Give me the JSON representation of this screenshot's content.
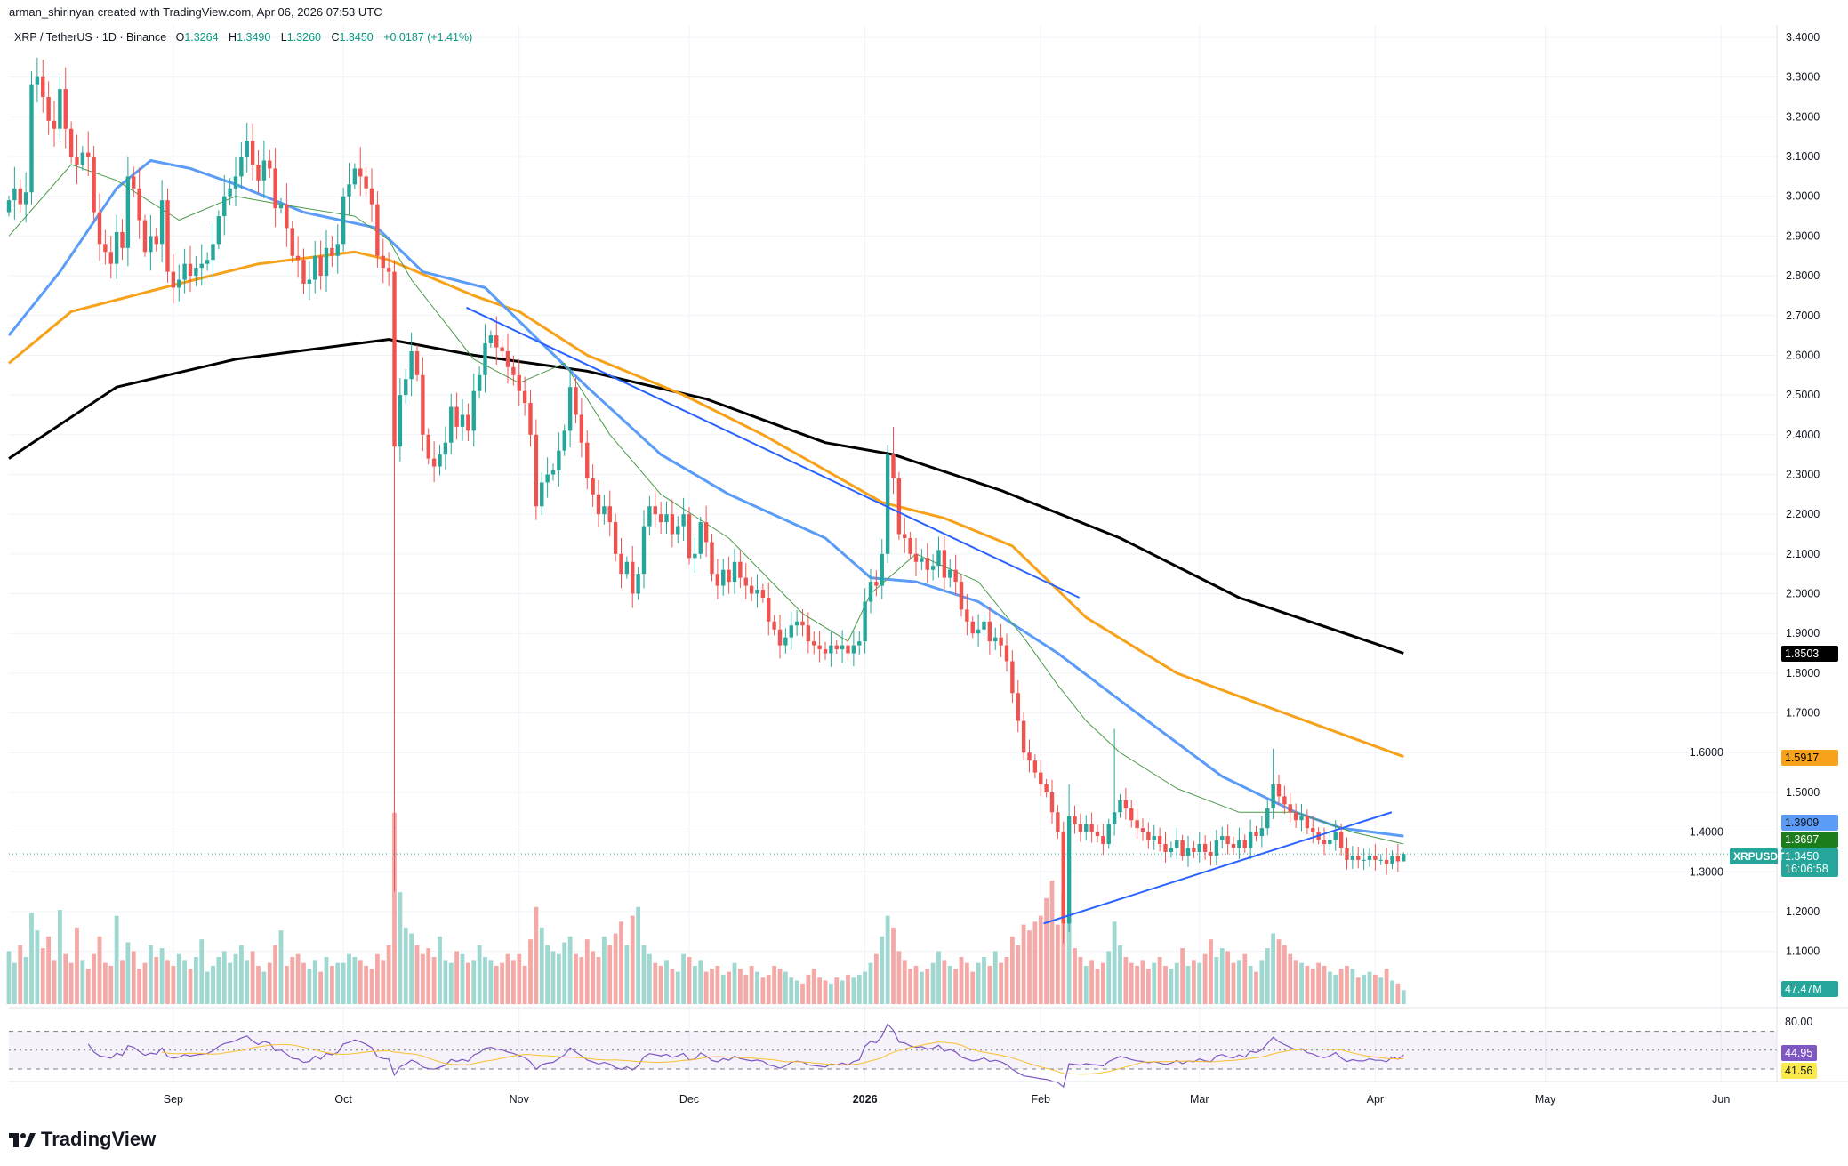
{
  "credit": "arman_shirinyan created with TradingView.com, Apr 06, 2026 07:53 UTC",
  "legend": {
    "symbol": "XRP / TetherUS · 1D · Binance",
    "o_label": "O",
    "o": "1.3264",
    "h_label": "H",
    "h": "1.3490",
    "l_label": "L",
    "l": "1.3260",
    "c_label": "C",
    "c": "1.3450",
    "change": "+0.0187 (+1.41%)"
  },
  "price_labels": {
    "ma200": "1.8503",
    "ma100": "1.5917",
    "ma50": "1.3909",
    "ma20": "1.3697",
    "last": "1.3450",
    "countdown": "16:06:58",
    "ticker": "XRPUSDT",
    "volume": "47.47M",
    "rsi": "44.95",
    "rsi_ma": "41.56",
    "rsi_top": "80.00"
  },
  "logo": "TradingView",
  "colors": {
    "up": "#26a69a",
    "down": "#ef5350",
    "ma200": "#000000",
    "ma100": "#f7a21b",
    "ma50": "#5b9cf6",
    "ma20": "#4a9a4a",
    "trend": "#2962ff",
    "rsi": "#7e57c2",
    "rsi_ma": "#fbc02d"
  },
  "chart_data": {
    "type": "candlestick",
    "title": "XRP / TetherUS · 1D · Binance",
    "start_date": "2025-08-03",
    "ylim": [
      1.05,
      3.42
    ],
    "y_ticks": [
      "3.4000",
      "3.3000",
      "3.2000",
      "3.1000",
      "3.0000",
      "2.9000",
      "2.8000",
      "2.7000",
      "2.6000",
      "2.5000",
      "2.4000",
      "2.3000",
      "2.2000",
      "2.1000",
      "2.0000",
      "1.9000",
      "1.8000",
      "1.7000",
      "1.6000",
      "1.5000",
      "1.4000",
      "1.3000",
      "1.2000",
      "1.1000"
    ],
    "x_ticks": [
      {
        "label": "Sep",
        "index": 29
      },
      {
        "label": "Oct",
        "index": 59
      },
      {
        "label": "Nov",
        "index": 90
      },
      {
        "label": "Dec",
        "index": 120
      },
      {
        "label": "2026",
        "index": 151
      },
      {
        "label": "Feb",
        "index": 182
      },
      {
        "label": "Mar",
        "index": 210
      },
      {
        "label": "Apr",
        "index": 241
      },
      {
        "label": "May",
        "index": 271
      },
      {
        "label": "Jun",
        "index": 302
      }
    ],
    "close": [
      2.99,
      3.02,
      2.98,
      3.01,
      3.28,
      3.3,
      3.25,
      3.19,
      3.17,
      3.27,
      3.17,
      3.1,
      3.08,
      3.11,
      3.1,
      2.96,
      2.88,
      2.86,
      2.83,
      2.91,
      2.87,
      3.05,
      3.02,
      2.94,
      2.86,
      2.9,
      2.88,
      2.99,
      2.81,
      2.77,
      2.79,
      2.83,
      2.8,
      2.82,
      2.83,
      2.84,
      2.88,
      2.95,
      3.0,
      3.02,
      3.05,
      3.1,
      3.14,
      3.08,
      3.04,
      3.09,
      3.07,
      2.97,
      2.98,
      2.92,
      2.85,
      2.84,
      2.78,
      2.79,
      2.85,
      2.8,
      2.87,
      2.85,
      2.88,
      3.0,
      3.03,
      3.07,
      3.05,
      3.02,
      2.98,
      2.85,
      2.82,
      2.81,
      2.37,
      2.5,
      2.54,
      2.61,
      2.55,
      2.4,
      2.34,
      2.32,
      2.35,
      2.38,
      2.47,
      2.42,
      2.45,
      2.41,
      2.51,
      2.55,
      2.63,
      2.65,
      2.62,
      2.61,
      2.57,
      2.55,
      2.51,
      2.48,
      2.4,
      2.22,
      2.28,
      2.3,
      2.31,
      2.36,
      2.41,
      2.52,
      2.45,
      2.38,
      2.29,
      2.25,
      2.2,
      2.22,
      2.18,
      2.1,
      2.05,
      2.08,
      2.0,
      2.05,
      2.17,
      2.22,
      2.2,
      2.18,
      2.2,
      2.15,
      2.17,
      2.2,
      2.09,
      2.1,
      2.18,
      2.13,
      2.05,
      2.02,
      2.06,
      2.03,
      2.08,
      2.04,
      2.02,
      2.0,
      2.01,
      1.99,
      1.93,
      1.91,
      1.87,
      1.89,
      1.92,
      1.93,
      1.92,
      1.88,
      1.87,
      1.86,
      1.85,
      1.87,
      1.86,
      1.87,
      1.85,
      1.87,
      1.88,
      1.98,
      2.03,
      2.02,
      2.1,
      2.35,
      2.29,
      2.15,
      2.14,
      2.1,
      2.08,
      2.09,
      2.06,
      2.07,
      2.11,
      2.04,
      2.06,
      2.03,
      1.96,
      1.93,
      1.9,
      1.91,
      1.93,
      1.88,
      1.89,
      1.87,
      1.83,
      1.75,
      1.68,
      1.6,
      1.58,
      1.55,
      1.52,
      1.5,
      1.45,
      1.4,
      1.17,
      1.44,
      1.42,
      1.4,
      1.42,
      1.4,
      1.39,
      1.37,
      1.42,
      1.45,
      1.48,
      1.46,
      1.43,
      1.41,
      1.4,
      1.38,
      1.39,
      1.37,
      1.35,
      1.36,
      1.38,
      1.34,
      1.36,
      1.35,
      1.37,
      1.35,
      1.34,
      1.38,
      1.39,
      1.37,
      1.36,
      1.38,
      1.36,
      1.4,
      1.39,
      1.41,
      1.46,
      1.52,
      1.49,
      1.47,
      1.45,
      1.43,
      1.44,
      1.41,
      1.4,
      1.38,
      1.37,
      1.38,
      1.4,
      1.36,
      1.33,
      1.34,
      1.33,
      1.33,
      1.34,
      1.33,
      1.33,
      1.32,
      1.34,
      1.3264,
      1.345
    ],
    "extremes": {
      "68": {
        "high": 2.84,
        "low": 1.25
      },
      "156": {
        "high": 2.42
      },
      "186": {
        "low": 1.12
      },
      "187": {
        "high": 1.52
      },
      "195": {
        "high": 1.66
      },
      "223": {
        "high": 1.61
      },
      "246": {
        "open": 1.3264,
        "high": 1.349,
        "low": 1.326
      }
    },
    "volume_millions": [
      180,
      140,
      200,
      160,
      310,
      250,
      190,
      230,
      150,
      320,
      170,
      140,
      260,
      150,
      120,
      170,
      230,
      140,
      130,
      300,
      150,
      210,
      180,
      120,
      140,
      200,
      160,
      190,
      150,
      130,
      170,
      150,
      120,
      160,
      220,
      110,
      130,
      160,
      180,
      140,
      170,
      200,
      150,
      180,
      130,
      110,
      140,
      200,
      250,
      130,
      160,
      170,
      140,
      120,
      150,
      110,
      160,
      130,
      140,
      140,
      170,
      160,
      150,
      130,
      120,
      170,
      150,
      200,
      650,
      380,
      260,
      240,
      200,
      170,
      190,
      160,
      230,
      150,
      140,
      180,
      170,
      140,
      150,
      200,
      160,
      150,
      130,
      140,
      170,
      150,
      170,
      130,
      220,
      330,
      260,
      200,
      180,
      170,
      210,
      230,
      170,
      160,
      220,
      180,
      160,
      230,
      200,
      240,
      280,
      200,
      300,
      330,
      200,
      170,
      140,
      130,
      150,
      120,
      110,
      170,
      160,
      130,
      150,
      110,
      120,
      130,
      100,
      110,
      140,
      120,
      100,
      130,
      110,
      90,
      100,
      130,
      120,
      110,
      90,
      80,
      70,
      100,
      120,
      90,
      80,
      70,
      90,
      80,
      100,
      90,
      100,
      110,
      140,
      170,
      230,
      300,
      260,
      180,
      150,
      120,
      130,
      110,
      120,
      140,
      180,
      150,
      130,
      120,
      160,
      140,
      110,
      140,
      160,
      130,
      180,
      140,
      160,
      230,
      200,
      270,
      250,
      280,
      300,
      360,
      420,
      270,
      380,
      300,
      190,
      160,
      130,
      150,
      120,
      140,
      180,
      280,
      200,
      160,
      140,
      130,
      150,
      120,
      140,
      160,
      130,
      120,
      140,
      190,
      130,
      150,
      140,
      170,
      220,
      160,
      190,
      180,
      140,
      150,
      170,
      130,
      110,
      150,
      190,
      240,
      220,
      200,
      170,
      150,
      140,
      130,
      120,
      140,
      130,
      110,
      100,
      120,
      130,
      120,
      90,
      100,
      110,
      100,
      90,
      120,
      80,
      70,
      47.47
    ],
    "moving_averages": [
      {
        "name": "MA200",
        "color_key": "ma200",
        "points": [
          [
            0,
            2.34
          ],
          [
            19,
            2.52
          ],
          [
            40,
            2.59
          ],
          [
            67,
            2.64
          ],
          [
            82,
            2.6
          ],
          [
            102,
            2.56
          ],
          [
            123,
            2.49
          ],
          [
            144,
            2.38
          ],
          [
            156,
            2.35
          ],
          [
            175,
            2.26
          ],
          [
            196,
            2.14
          ],
          [
            217,
            1.99
          ],
          [
            246,
            1.85
          ]
        ]
      },
      {
        "name": "MA100",
        "color_key": "ma100",
        "points": [
          [
            0,
            2.58
          ],
          [
            11,
            2.71
          ],
          [
            30,
            2.78
          ],
          [
            44,
            2.83
          ],
          [
            61,
            2.86
          ],
          [
            67,
            2.84
          ],
          [
            82,
            2.75
          ],
          [
            90,
            2.71
          ],
          [
            102,
            2.6
          ],
          [
            119,
            2.5
          ],
          [
            133,
            2.4
          ],
          [
            154,
            2.23
          ],
          [
            165,
            2.19
          ],
          [
            177,
            2.12
          ],
          [
            190,
            1.94
          ],
          [
            206,
            1.8
          ],
          [
            223,
            1.71
          ],
          [
            246,
            1.59
          ]
        ]
      },
      {
        "name": "MA50",
        "color_key": "ma50",
        "points": [
          [
            0,
            2.65
          ],
          [
            9,
            2.81
          ],
          [
            19,
            3.02
          ],
          [
            25,
            3.09
          ],
          [
            32,
            3.07
          ],
          [
            40,
            3.03
          ],
          [
            52,
            2.96
          ],
          [
            65,
            2.92
          ],
          [
            73,
            2.81
          ],
          [
            84,
            2.77
          ],
          [
            94,
            2.63
          ],
          [
            102,
            2.52
          ],
          [
            115,
            2.35
          ],
          [
            127,
            2.25
          ],
          [
            144,
            2.14
          ],
          [
            152,
            2.04
          ],
          [
            160,
            2.03
          ],
          [
            171,
            1.98
          ],
          [
            185,
            1.85
          ],
          [
            198,
            1.71
          ],
          [
            214,
            1.54
          ],
          [
            227,
            1.45
          ],
          [
            235,
            1.41
          ],
          [
            246,
            1.39
          ]
        ]
      },
      {
        "name": "MA20",
        "color_key": "ma20",
        "points": [
          [
            0,
            2.9
          ],
          [
            11,
            3.08
          ],
          [
            19,
            3.04
          ],
          [
            30,
            2.94
          ],
          [
            40,
            3.0
          ],
          [
            48,
            2.98
          ],
          [
            61,
            2.95
          ],
          [
            67,
            2.89
          ],
          [
            71,
            2.79
          ],
          [
            82,
            2.59
          ],
          [
            90,
            2.53
          ],
          [
            98,
            2.58
          ],
          [
            106,
            2.4
          ],
          [
            115,
            2.25
          ],
          [
            127,
            2.14
          ],
          [
            140,
            1.95
          ],
          [
            148,
            1.88
          ],
          [
            152,
            2.0
          ],
          [
            160,
            2.1
          ],
          [
            171,
            2.03
          ],
          [
            179,
            1.89
          ],
          [
            185,
            1.77
          ],
          [
            190,
            1.68
          ],
          [
            196,
            1.6
          ],
          [
            206,
            1.51
          ],
          [
            217,
            1.45
          ],
          [
            227,
            1.45
          ],
          [
            237,
            1.4
          ],
          [
            246,
            1.37
          ]
        ]
      }
    ],
    "trendlines": [
      {
        "name": "descending-trendline",
        "from": [
          80.7,
          2.72
        ],
        "to": [
          188.8,
          1.99
        ]
      },
      {
        "name": "ascending-trendline",
        "from": [
          182.5,
          1.17
        ],
        "to": [
          243.9,
          1.45
        ]
      }
    ],
    "rsi": {
      "period": 14,
      "ma_period": 14,
      "upper": 70,
      "lower": 30
    }
  }
}
